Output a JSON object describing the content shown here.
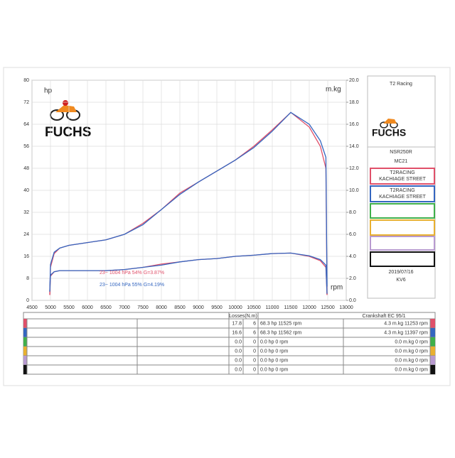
{
  "chart_data": {
    "type": "line",
    "y_label": "hp",
    "y2_label": "m.kg",
    "x_label": "rpm",
    "logo": "FUCHS",
    "x": [
      4980,
      5000,
      5100,
      5250,
      5500,
      6000,
      6500,
      7000,
      7500,
      8000,
      8500,
      9000,
      9500,
      10000,
      10500,
      11000,
      11500,
      12000,
      12300,
      12450,
      12480
    ],
    "xlim": [
      4500,
      13000
    ],
    "xticks": [
      4500,
      5000,
      5500,
      6000,
      6500,
      7000,
      7500,
      8000,
      8500,
      9000,
      9500,
      10000,
      10500,
      11000,
      11500,
      12000,
      12500,
      13000
    ],
    "ylim": [
      0,
      80
    ],
    "yticks": [
      0,
      8,
      16,
      24,
      32,
      40,
      48,
      56,
      64,
      72,
      80
    ],
    "y2lim": [
      0,
      20
    ],
    "y2ticks": [
      {
        "value": 0,
        "label": "0.0"
      },
      {
        "value": 2,
        "label": "2.0"
      },
      {
        "value": 4,
        "label": "4.0"
      },
      {
        "value": 6,
        "label": "6.0"
      },
      {
        "value": 8,
        "label": "8.0"
      },
      {
        "value": 10,
        "label": "10.0"
      },
      {
        "value": 12,
        "label": "12.0"
      },
      {
        "value": 14,
        "label": "14.0"
      },
      {
        "value": 16,
        "label": "16.0"
      },
      {
        "value": 18,
        "label": "18.0"
      },
      {
        "value": 20,
        "label": "20.0"
      }
    ],
    "grid": true,
    "series": [
      {
        "color": "#e0506a",
        "values": [
          2,
          12,
          17,
          19,
          20,
          21,
          22,
          24,
          28,
          33,
          39,
          43,
          47,
          51,
          56,
          62,
          68.3,
          63,
          56,
          48,
          2
        ]
      },
      {
        "color": "#3466c0",
        "values": [
          3,
          13,
          17.5,
          19,
          20,
          21,
          22,
          24,
          27.5,
          33,
          38.5,
          43,
          47,
          51,
          55.5,
          61.5,
          68.3,
          64,
          58,
          52,
          5
        ]
      },
      {
        "color": "#e0506a",
        "axis": "y2",
        "values": [
          0.5,
          2.2,
          2.6,
          2.7,
          2.7,
          2.7,
          2.7,
          2.8,
          3.0,
          3.3,
          3.5,
          3.7,
          3.8,
          4.0,
          4.1,
          4.25,
          4.3,
          4.0,
          3.6,
          3.0,
          0.5
        ]
      },
      {
        "color": "#3466c0",
        "axis": "y2",
        "values": [
          0.8,
          2.3,
          2.6,
          2.7,
          2.7,
          2.7,
          2.7,
          2.8,
          3.0,
          3.2,
          3.5,
          3.7,
          3.8,
          4.0,
          4.1,
          4.25,
          4.3,
          4.05,
          3.7,
          3.2,
          0.6
        ]
      }
    ],
    "annotations": [
      {
        "text": "23~   1004 hPa  54%    G=3.87%",
        "color": "#e0506a"
      },
      {
        "text": "23~   1004 hPa  55%    G=4.19%",
        "color": "#3466c0"
      }
    ]
  },
  "side_panel": {
    "title": "T2 Racing",
    "logo": "FUCHS",
    "model": "NSR250R",
    "code": "MC21",
    "boxes": [
      {
        "color": "#e0506a",
        "lines": [
          "T2RACING",
          "KACHIAGE  STREET"
        ]
      },
      {
        "color": "#3466c0",
        "lines": [
          "T2RACING",
          "KACHIAGE  STREET"
        ]
      },
      {
        "color": "#3fb04a"
      },
      {
        "color": "#e8b030"
      },
      {
        "color": "#b89ad0"
      },
      {
        "color": "#111111"
      }
    ],
    "date": "2019/07/16",
    "id": "KV6"
  },
  "table": {
    "losses_header": "Losses(N.m)",
    "crank_header": "Crankshaft EC 95/1",
    "row_colors": [
      "#e0506a",
      "#3466c0",
      "#3fb04a",
      "#e8b030",
      "#b89ad0",
      "#111111"
    ],
    "rows": [
      [
        "17.8",
        "6",
        "68.3 hp 11525 rpm",
        "4.3 m.kg 11253 rpm"
      ],
      [
        "16.6",
        "6",
        "68.3 hp 11562 rpm",
        "4.3 m.kg 11397 rpm"
      ],
      [
        "0.0",
        "0",
        "0.0 hp 0 rpm",
        "0.0 m.kg 0 rpm"
      ],
      [
        "0.0",
        "0",
        "0.0 hp 0 rpm",
        "0.0 m.kg 0 rpm"
      ],
      [
        "0.0",
        "0",
        "0.0 hp 0 rpm",
        "0.0 m.kg 0 rpm"
      ],
      [
        "0.0",
        "0",
        "0.0 hp 0 rpm",
        "0.0 m.kg 0 rpm"
      ]
    ]
  }
}
